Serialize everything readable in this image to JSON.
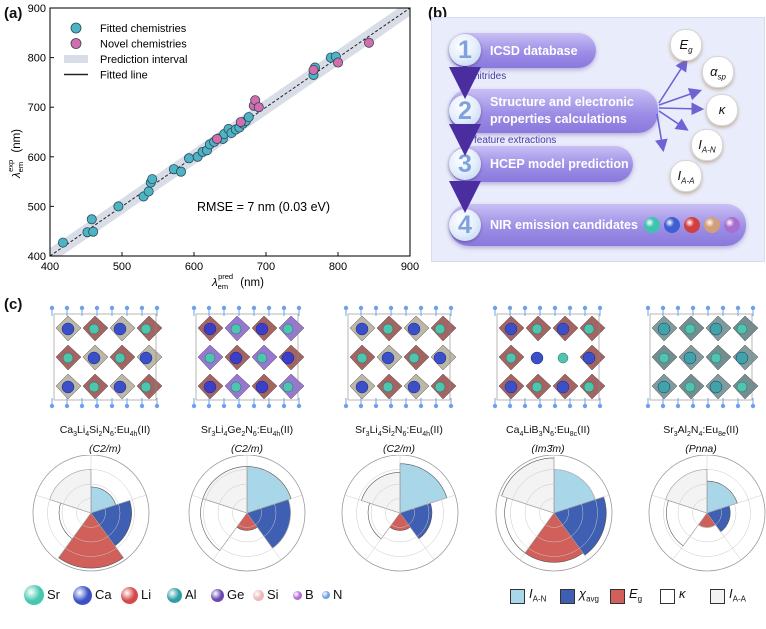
{
  "panels": {
    "a": "(a)",
    "b": "(b)",
    "c": "(c)"
  },
  "chart_data": {
    "type": "scatter",
    "x_axis_base": "λ",
    "x_axis_sub": "em",
    "x_axis_sup": "pred",
    "x_axis_unit": "(nm)",
    "y_axis_base": "λ",
    "y_axis_sub": "em",
    "y_axis_sup": "exp",
    "y_axis_unit": "(nm)",
    "xlim": [
      400,
      900
    ],
    "ylim": [
      400,
      900
    ],
    "xticks": [
      "400",
      "500",
      "600",
      "700",
      "800",
      "900"
    ],
    "yticks": [
      "400",
      "500",
      "600",
      "700",
      "800",
      "900"
    ],
    "annotation": "RMSE = 7 nm (0.03 eV)",
    "legend": [
      {
        "name": "Fitted chemistries",
        "color": "#4fb3c6"
      },
      {
        "name": "Novel chemistries",
        "color": "#d56cad"
      },
      {
        "name": "Prediction interval",
        "color": "#d8dde8"
      },
      {
        "name": "Fitted line",
        "color": "#222222"
      }
    ],
    "series": [
      {
        "name": "Fitted chemistries",
        "color": "#4fb3c6",
        "points": [
          [
            418,
            427
          ],
          [
            452,
            448
          ],
          [
            460,
            449
          ],
          [
            458,
            474
          ],
          [
            495,
            500
          ],
          [
            530,
            520
          ],
          [
            537,
            530
          ],
          [
            540,
            548
          ],
          [
            542,
            555
          ],
          [
            572,
            575
          ],
          [
            582,
            570
          ],
          [
            593,
            597
          ],
          [
            605,
            600
          ],
          [
            612,
            610
          ],
          [
            618,
            613
          ],
          [
            622,
            625
          ],
          [
            628,
            630
          ],
          [
            634,
            637
          ],
          [
            640,
            636
          ],
          [
            642,
            646
          ],
          [
            648,
            656
          ],
          [
            652,
            648
          ],
          [
            658,
            655
          ],
          [
            663,
            659
          ],
          [
            668,
            667
          ],
          [
            672,
            672
          ],
          [
            676,
            680
          ],
          [
            766,
            765
          ],
          [
            768,
            780
          ],
          [
            790,
            800
          ],
          [
            797,
            802
          ]
        ]
      },
      {
        "name": "Novel chemistries",
        "color": "#d56cad",
        "points": [
          [
            632,
            636
          ],
          [
            665,
            670
          ],
          [
            683,
            703
          ],
          [
            685,
            714
          ],
          [
            690,
            700
          ],
          [
            766,
            775
          ],
          [
            800,
            790
          ],
          [
            843,
            830
          ]
        ]
      }
    ]
  },
  "flow": {
    "steps": [
      {
        "num": "1",
        "text": "ICSD database"
      },
      {
        "num": "2",
        "text": "Structure and electronic properties calculations"
      },
      {
        "num": "3",
        "text": "HCEP model prediction"
      },
      {
        "num": "4",
        "text": "NIR emission candidates"
      }
    ],
    "arrow_labels": [
      "nitrides",
      "feature extractions"
    ],
    "properties": [
      {
        "base": "E",
        "sub": "g"
      },
      {
        "base": "α",
        "sub": "sp"
      },
      {
        "base": "κ",
        "sub": ""
      },
      {
        "base": "I",
        "sub": "A-N"
      },
      {
        "base": "I",
        "sub": "A-A"
      }
    ],
    "ball_colors": [
      "#3fc2b0",
      "#3f5fd0",
      "#d23f3f",
      "#d2a078",
      "#a86fd0"
    ]
  },
  "structures": [
    {
      "formula_html": "Ca<sub>3</sub>Li<sub>4</sub>Si<sub>2</sub>N<sub>6</sub>:Eu<sub>4h</sub>(II)",
      "space_group": "(C2/m)",
      "radar": [
        0.45,
        0.7,
        0.95,
        0.55,
        0.75
      ]
    },
    {
      "formula_html": "Sr<sub>3</sub>Li<sub>4</sub>Ge<sub>2</sub>N<sub>6</sub>:Eu<sub>4h</sub>(II)",
      "space_group": "(C2/m)",
      "radar": [
        0.8,
        0.75,
        0.3,
        0.8,
        0.8
      ]
    },
    {
      "formula_html": "Sr<sub>3</sub>Li<sub>4</sub>Si<sub>2</sub>N<sub>6</sub>:Eu<sub>4h</sub>(II)",
      "space_group": "(C2/m)",
      "radar": [
        0.85,
        0.55,
        0.3,
        0.55,
        0.7
      ]
    },
    {
      "formula_html": "Ca<sub>4</sub>LiB<sub>3</sub>N<sub>6</sub>:Eu<sub>8c</sub>(II)",
      "space_group": "(Im3̄m)",
      "radar": [
        0.75,
        0.9,
        0.85,
        0.85,
        0.95
      ]
    },
    {
      "formula_html": "Sr<sub>3</sub>Al<sub>2</sub>N<sub>4</sub>:Eu<sub>8e</sub>(II)",
      "space_group": "(Pnna)",
      "radar": [
        0.55,
        0.4,
        0.25,
        0.7,
        0.75
      ]
    }
  ],
  "radar_colors": [
    "#a9d7ea",
    "#3f5fb3",
    "#d2605a",
    "#ffffff",
    "#f3f3f3"
  ],
  "element_legend": [
    {
      "label": "Sr",
      "color": "#46c8ae",
      "size": 20
    },
    {
      "label": "Ca",
      "color": "#3a52c6",
      "size": 19
    },
    {
      "label": "Li",
      "color": "#d34a4a",
      "size": 17
    },
    {
      "label": "Al",
      "color": "#2f9da4",
      "size": 15
    },
    {
      "label": "Ge",
      "color": "#6a4ab0",
      "size": 13
    },
    {
      "label": "Si",
      "color": "#efb8b8",
      "size": 11
    },
    {
      "label": "B",
      "color": "#b26bd6",
      "size": 9
    },
    {
      "label": "N",
      "color": "#6fa0ec",
      "size": 8
    }
  ],
  "property_legend": [
    {
      "base": "I",
      "sub": "A-N",
      "color": "#a9d7ea"
    },
    {
      "base": "χ",
      "sub": "avg",
      "color": "#3f5fb3"
    },
    {
      "base": "E",
      "sub": "g",
      "color": "#d2605a"
    },
    {
      "base": "κ",
      "sub": "",
      "color": "#ffffff"
    },
    {
      "base": "I",
      "sub": "A-A",
      "color": "#f3f3f3"
    }
  ]
}
